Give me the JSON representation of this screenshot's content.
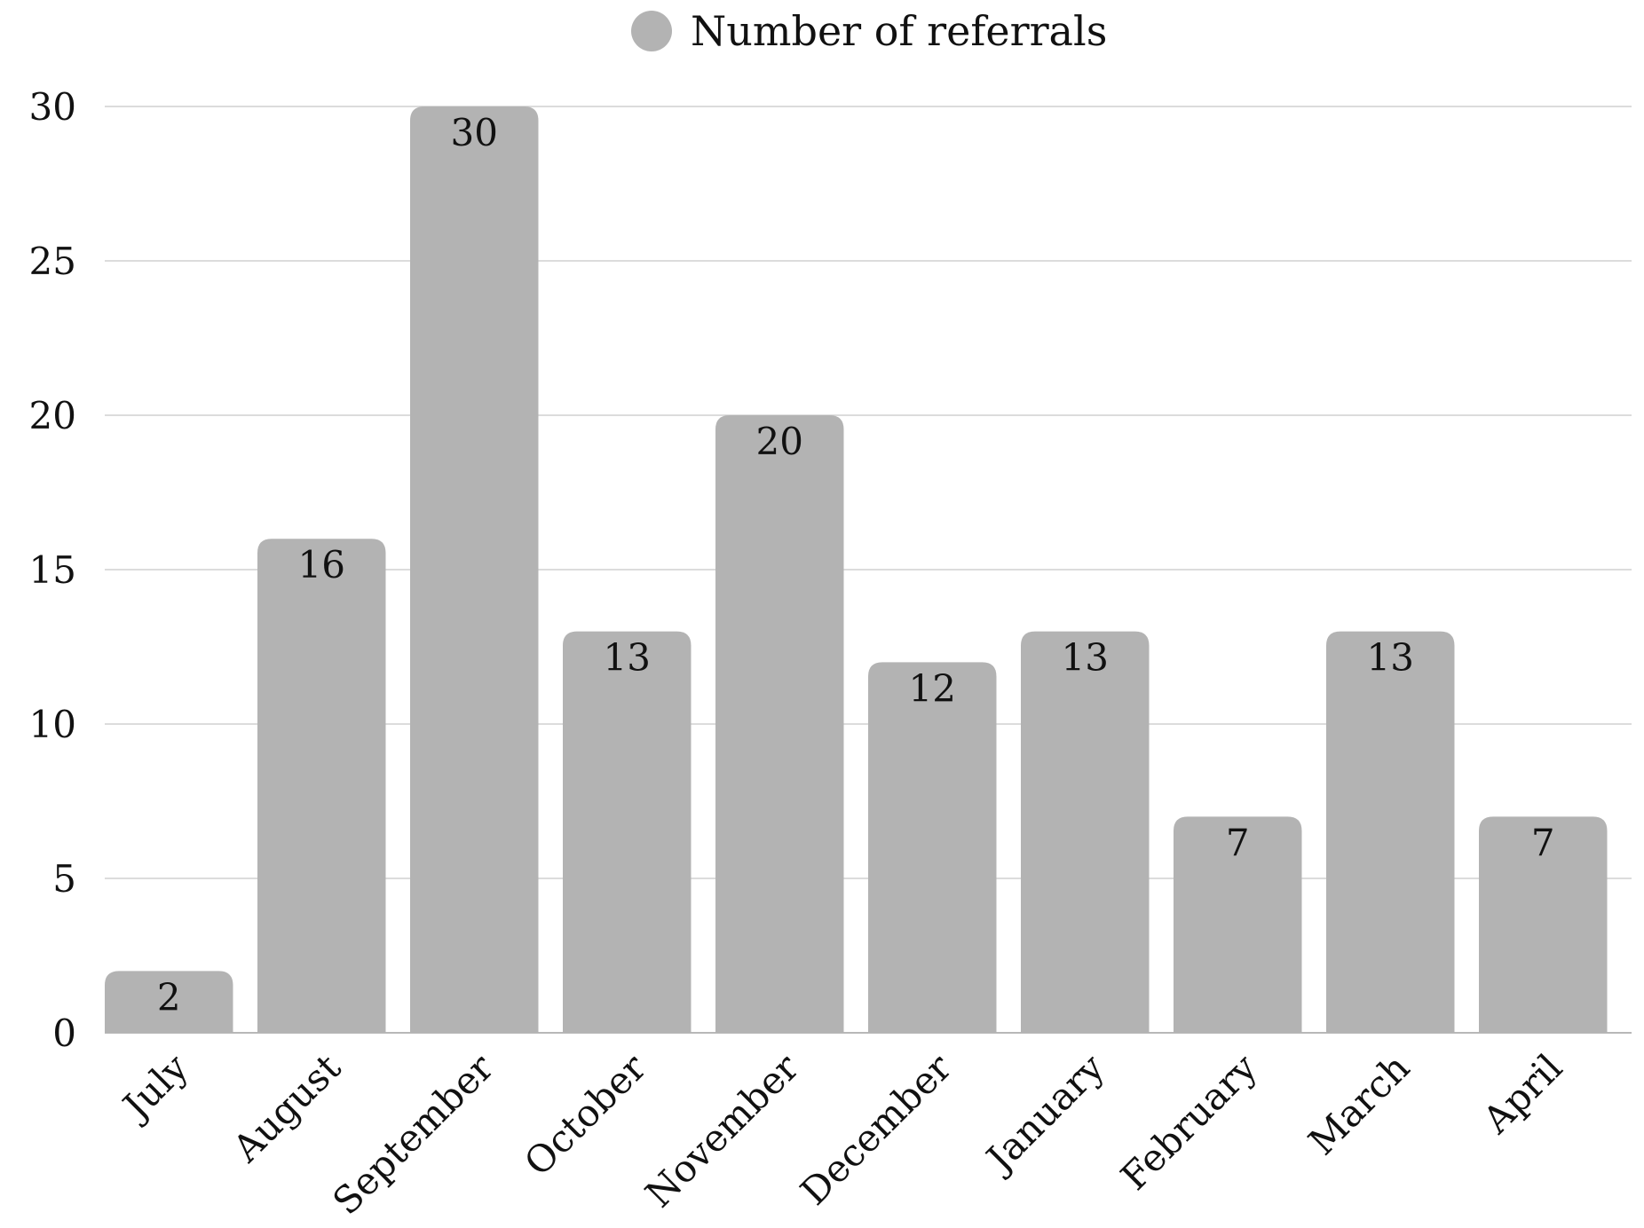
{
  "chart_data": {
    "type": "bar",
    "categories": [
      "July",
      "August",
      "September",
      "October",
      "November",
      "December",
      "January",
      "February",
      "March",
      "April"
    ],
    "series": [
      {
        "name": "Number of referrals",
        "values": [
          2,
          16,
          30,
          13,
          20,
          12,
          13,
          7,
          13,
          7
        ],
        "color": "#b3b3b3"
      }
    ],
    "title": "",
    "xlabel": "",
    "ylabel": "",
    "ylim": [
      0,
      30
    ],
    "yticks": [
      "0",
      "5",
      "10",
      "15",
      "20",
      "25",
      "30"
    ],
    "grid": true,
    "legend_position": "top-center",
    "data_labels": true
  }
}
